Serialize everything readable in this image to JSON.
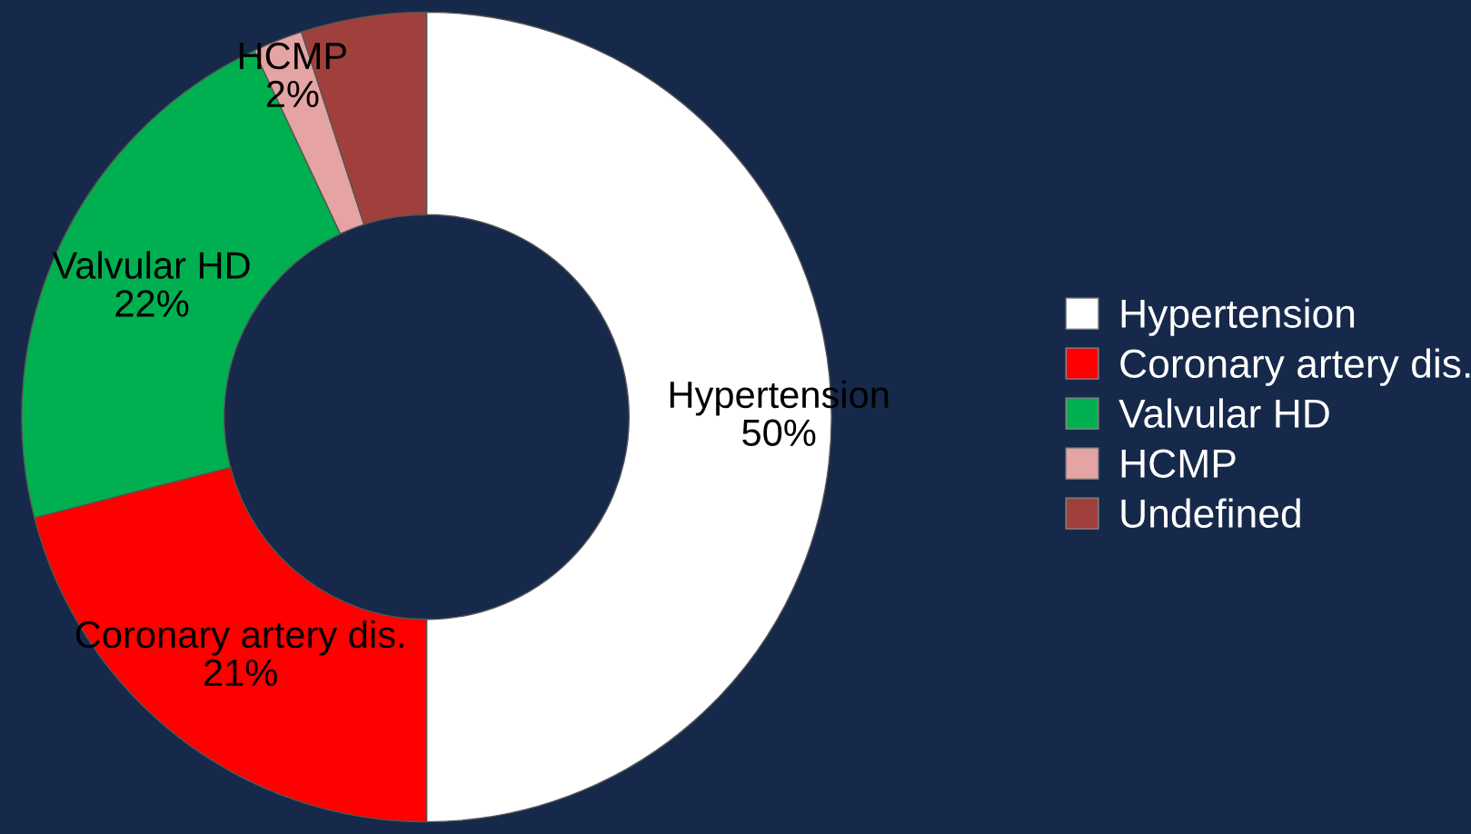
{
  "chart_data": {
    "type": "donut",
    "categories": [
      "Hypertension",
      "Coronary artery dis.",
      "Valvular HD",
      "HCMP",
      "Undefined"
    ],
    "values": [
      50,
      21,
      22,
      2,
      5
    ],
    "colors": [
      "#ffffff",
      "#ff0000",
      "#00b050",
      "#e6a3a3",
      "#a0403c"
    ],
    "value_labels": [
      "50%",
      "21%",
      "22%",
      "2%",
      null
    ],
    "legend": "right"
  }
}
